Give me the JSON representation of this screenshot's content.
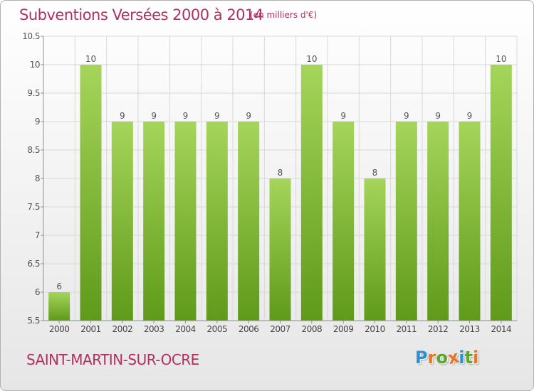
{
  "header": {
    "title": "Subventions Versées 2000 à 2014",
    "unit": "(en milliers d'€)"
  },
  "footer": {
    "place": "SAINT-MARTIN-SUR-OCRE",
    "logo_text": "Proxiti"
  },
  "colors": {
    "title": "#b03060",
    "bar_top": "#a5d55a",
    "bar_bottom": "#5f9a1a",
    "grid": "#d8d8d8",
    "axis": "#909090"
  },
  "chart_data": {
    "type": "bar",
    "title": "Subventions Versées 2000 à 2014",
    "xlabel": "",
    "ylabel": "",
    "categories": [
      "2000",
      "2001",
      "2002",
      "2003",
      "2004",
      "2005",
      "2006",
      "2007",
      "2008",
      "2009",
      "2010",
      "2011",
      "2012",
      "2013",
      "2014"
    ],
    "values": [
      6,
      10,
      9,
      9,
      9,
      9,
      9,
      8,
      10,
      9,
      8,
      9,
      9,
      9,
      10
    ],
    "ylim": [
      5.5,
      10.5
    ],
    "yticks": [
      "5.5",
      "6",
      "6.5",
      "7",
      "7.5",
      "8",
      "8.5",
      "9",
      "9.5",
      "10",
      "10.5"
    ],
    "grid": true,
    "legend": "none"
  }
}
